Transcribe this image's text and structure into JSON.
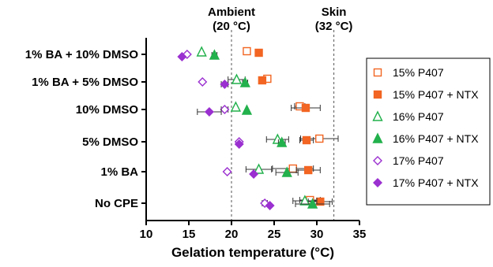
{
  "chart_data": {
    "type": "scatter",
    "orientation": "horizontal",
    "xlabel": "Gelation temperature (°C)",
    "xlim": [
      10,
      35
    ],
    "xticks": [
      10,
      15,
      20,
      25,
      30,
      35
    ],
    "categories": [
      "1% BA + 10% DMSO",
      "1% BA + 5% DMSO",
      "10% DMSO",
      "5% DMSO",
      "1% BA",
      "No CPE"
    ],
    "reference_lines": [
      {
        "name": "Ambient",
        "sublabel": "(20 °C)",
        "x": 20
      },
      {
        "name": "Skin",
        "sublabel": "(32 °C)",
        "x": 32
      }
    ],
    "legend_position": "right",
    "series": [
      {
        "name": "15% P407",
        "marker": "square-open",
        "color": "#f26522",
        "values": [
          21.8,
          24.2,
          28.0,
          30.3,
          27.2,
          29.2
        ],
        "errors": [
          0.2,
          0.3,
          0.6,
          2.2,
          2.4,
          1.2
        ]
      },
      {
        "name": "15% P407 + NTX",
        "marker": "square-filled",
        "color": "#f26522",
        "values": [
          23.2,
          23.6,
          28.7,
          28.8,
          29.0,
          30.4
        ],
        "errors": [
          0.2,
          0.4,
          1.7,
          0.8,
          1.4,
          1.4
        ]
      },
      {
        "name": "16% P407",
        "marker": "triangle-open",
        "color": "#22b14c",
        "values": [
          16.5,
          20.6,
          20.5,
          25.4,
          23.2,
          28.6
        ],
        "errors": [
          0.2,
          1.0,
          0.2,
          1.3,
          1.5,
          1.4
        ]
      },
      {
        "name": "16% P407 + NTX",
        "marker": "triangle-filled",
        "color": "#22b14c",
        "values": [
          18.0,
          21.6,
          21.8,
          25.9,
          26.5,
          29.5
        ],
        "errors": [
          0.3,
          0.3,
          0.2,
          0.4,
          1.3,
          2.0
        ]
      },
      {
        "name": "17% P407",
        "marker": "diamond-open",
        "color": "#9b30d0",
        "values": [
          14.8,
          16.6,
          19.2,
          20.9,
          19.5,
          23.9
        ],
        "errors": [
          0.2,
          0.2,
          0.4,
          0.2,
          0.2,
          0.3
        ]
      },
      {
        "name": "17% P407 + NTX",
        "marker": "diamond-filled",
        "color": "#9b30d0",
        "values": [
          14.2,
          19.2,
          17.4,
          20.9,
          22.6,
          24.5
        ],
        "errors": [
          0.2,
          0.4,
          1.4,
          0.2,
          0.2,
          0.2
        ]
      }
    ]
  }
}
